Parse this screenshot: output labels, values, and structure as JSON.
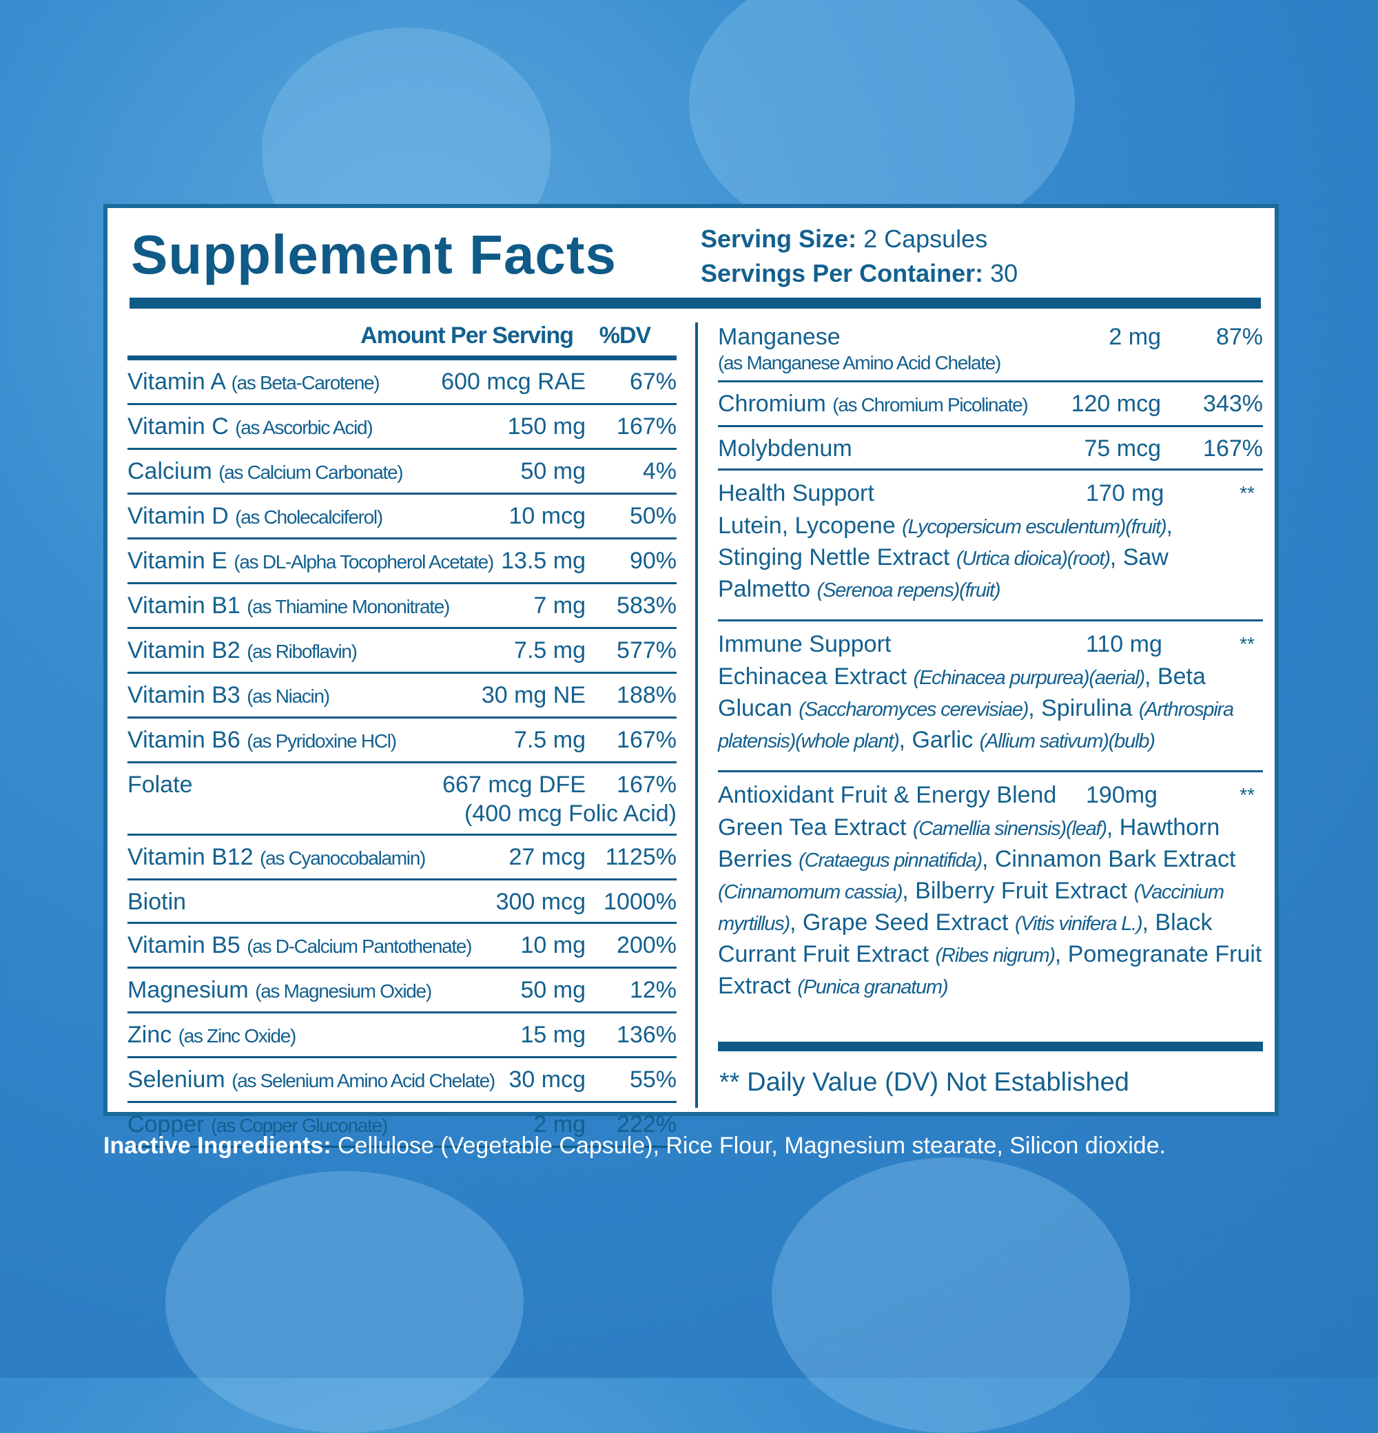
{
  "title": "Supplement Facts",
  "serving": [
    {
      "label": "Serving Size:",
      "value": "2 Capsules"
    },
    {
      "label": "Servings Per Container:",
      "value": "30"
    }
  ],
  "left": {
    "header": {
      "amount": "Amount Per Serving",
      "dv": "%DV"
    },
    "rows": [
      {
        "name": "Vitamin A",
        "source": "(as Beta-Carotene)",
        "amount": "600 mcg RAE",
        "dv": "67%"
      },
      {
        "name": "Vitamin C",
        "source": "(as Ascorbic Acid)",
        "amount": "150 mg",
        "dv": "167%"
      },
      {
        "name": "Calcium",
        "source": "(as Calcium Carbonate)",
        "amount": "50 mg",
        "dv": "4%"
      },
      {
        "name": "Vitamin D",
        "source": "(as Cholecalciferol)",
        "amount": "10 mcg",
        "dv": "50%"
      },
      {
        "name": "Vitamin E",
        "source": "(as DL-Alpha Tocopherol Acetate)",
        "amount": "13.5 mg",
        "dv": "90%"
      },
      {
        "name": "Vitamin B1",
        "source": "(as Thiamine Mononitrate)",
        "amount": "7 mg",
        "dv": "583%"
      },
      {
        "name": "Vitamin B2",
        "source": "(as Riboflavin)",
        "amount": "7.5 mg",
        "dv": "577%"
      },
      {
        "name": "Vitamin B3",
        "source": "(as Niacin)",
        "amount": "30 mg NE",
        "dv": "188%"
      },
      {
        "name": "Vitamin B6",
        "source": "(as Pyridoxine HCl)",
        "amount": "7.5 mg",
        "dv": "167%"
      },
      {
        "name": "Folate",
        "amount": "667 mcg DFE",
        "dv": "167%",
        "note": "(400 mcg Folic Acid)"
      },
      {
        "name": "Vitamin B12",
        "source": "(as Cyanocobalamin)",
        "amount": "27 mcg",
        "dv": "1125%"
      },
      {
        "name": "Biotin",
        "amount": "300 mcg",
        "dv": "1000%"
      },
      {
        "name": "Vitamin B5",
        "source": "(as D-Calcium Pantothenate)",
        "amount": "10 mg",
        "dv": "200%"
      },
      {
        "name": "Magnesium",
        "source": "(as Magnesium Oxide)",
        "amount": "50 mg",
        "dv": "12%"
      },
      {
        "name": "Zinc",
        "source": "(as Zinc Oxide)",
        "amount": "15 mg",
        "dv": "136%"
      },
      {
        "name": "Selenium",
        "source": "(as Selenium Amino Acid Chelate)",
        "amount": "30 mcg",
        "dv": "55%"
      },
      {
        "name": "Copper",
        "source": "(as Copper Gluconate)",
        "amount": "2 mg",
        "dv": "222%"
      }
    ]
  },
  "right": {
    "rows": [
      {
        "name": "Manganese",
        "amount": "2 mg",
        "dv": "87%",
        "note": "(as Manganese Amino Acid Chelate)"
      },
      {
        "name": "Chromium",
        "source": "(as Chromium Picolinate)",
        "amount": "120 mcg",
        "dv": "343%"
      },
      {
        "name": "Molybdenum",
        "amount": "75 mcg",
        "dv": "167%"
      }
    ],
    "blends": [
      {
        "name": "Health Support",
        "amount": "170 mg",
        "dv": "**",
        "ingredients": [
          [
            "Lutein, Lycopene ",
            "(Lycopersicum esculentum)(fruit)"
          ],
          [
            ", Stinging Nettle Extract ",
            "(Urtica dioica)(root)"
          ],
          [
            ", Saw Palmetto ",
            "(Serenoa repens)(fruit)"
          ]
        ]
      },
      {
        "name": "Immune Support",
        "amount": "110 mg",
        "dv": "**",
        "ingredients": [
          [
            "Echinacea Extract ",
            "(Echinacea purpurea)(aerial)"
          ],
          [
            ", Beta Glucan ",
            "(Saccharomyces cerevisiae)"
          ],
          [
            ", Spirulina ",
            "(Arthrospira platensis)(whole plant)"
          ],
          [
            ", Garlic ",
            "(Allium sativum)(bulb)"
          ]
        ]
      },
      {
        "name": "Antioxidant Fruit & Energy Blend",
        "amount": "190mg",
        "dv": "**",
        "ingredients": [
          [
            "Green Tea Extract ",
            "(Camellia sinensis)(leaf)"
          ],
          [
            ", Hawthorn Berries ",
            "(Crataegus pinnatifida)"
          ],
          [
            ", Cinnamon Bark Extract ",
            "(Cinnamomum cassia)"
          ],
          [
            ", Bilberry Fruit Extract ",
            "(Vaccinium myrtillus)"
          ],
          [
            ", Grape Seed Extract ",
            "(Vitis vinifera L.)"
          ],
          [
            ", Black Currant Fruit Extract ",
            "(Ribes nigrum)"
          ],
          [
            ", Pomegranate Fruit Extract ",
            "(Punica granatum)"
          ]
        ]
      }
    ]
  },
  "footnote": "** Daily Value (DV) Not Established",
  "inactive": {
    "label": "Inactive Ingredients:",
    "text": "Cellulose (Vegetable Capsule), Rice Flour, Magnesium stearate, Silicon dioxide."
  }
}
